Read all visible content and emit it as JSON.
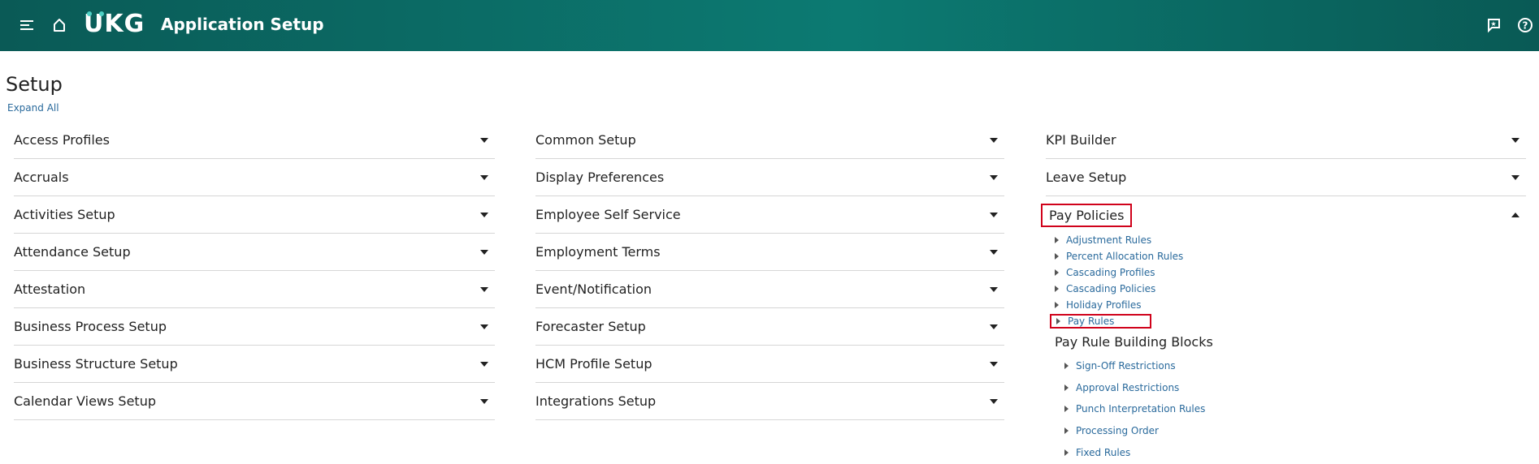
{
  "header": {
    "app_title": "Application Setup",
    "logo": "UKG",
    "icons": [
      "menu-icon",
      "home-icon",
      "feedback-icon",
      "help-icon"
    ],
    "brand_color": "#0a6b65"
  },
  "page": {
    "title": "Setup",
    "expand_all": "Expand All"
  },
  "columns": [
    [
      "Access Profiles",
      "Accruals",
      "Activities Setup",
      "Attendance Setup",
      "Attestation",
      "Business Process Setup",
      "Business Structure Setup",
      "Calendar Views Setup"
    ],
    [
      "Common Setup",
      "Display Preferences",
      "Employee Self Service",
      "Employment Terms",
      "Event/Notification",
      "Forecaster Setup",
      "HCM Profile Setup",
      "Integrations Setup"
    ],
    [
      "KPI Builder",
      "Leave Setup",
      "Pay Policies"
    ]
  ],
  "pay_policies": {
    "items": [
      "Adjustment Rules",
      "Percent Allocation Rules",
      "Cascading Profiles",
      "Cascading Policies",
      "Holiday Profiles",
      "Pay Rules"
    ],
    "building_blocks_title": "Pay Rule Building Blocks",
    "building_blocks": [
      "Sign-Off Restrictions",
      "Approval Restrictions",
      "Punch Interpretation Rules",
      "Processing Order",
      "Fixed Rules"
    ]
  },
  "highlight_color": "#d0021b"
}
